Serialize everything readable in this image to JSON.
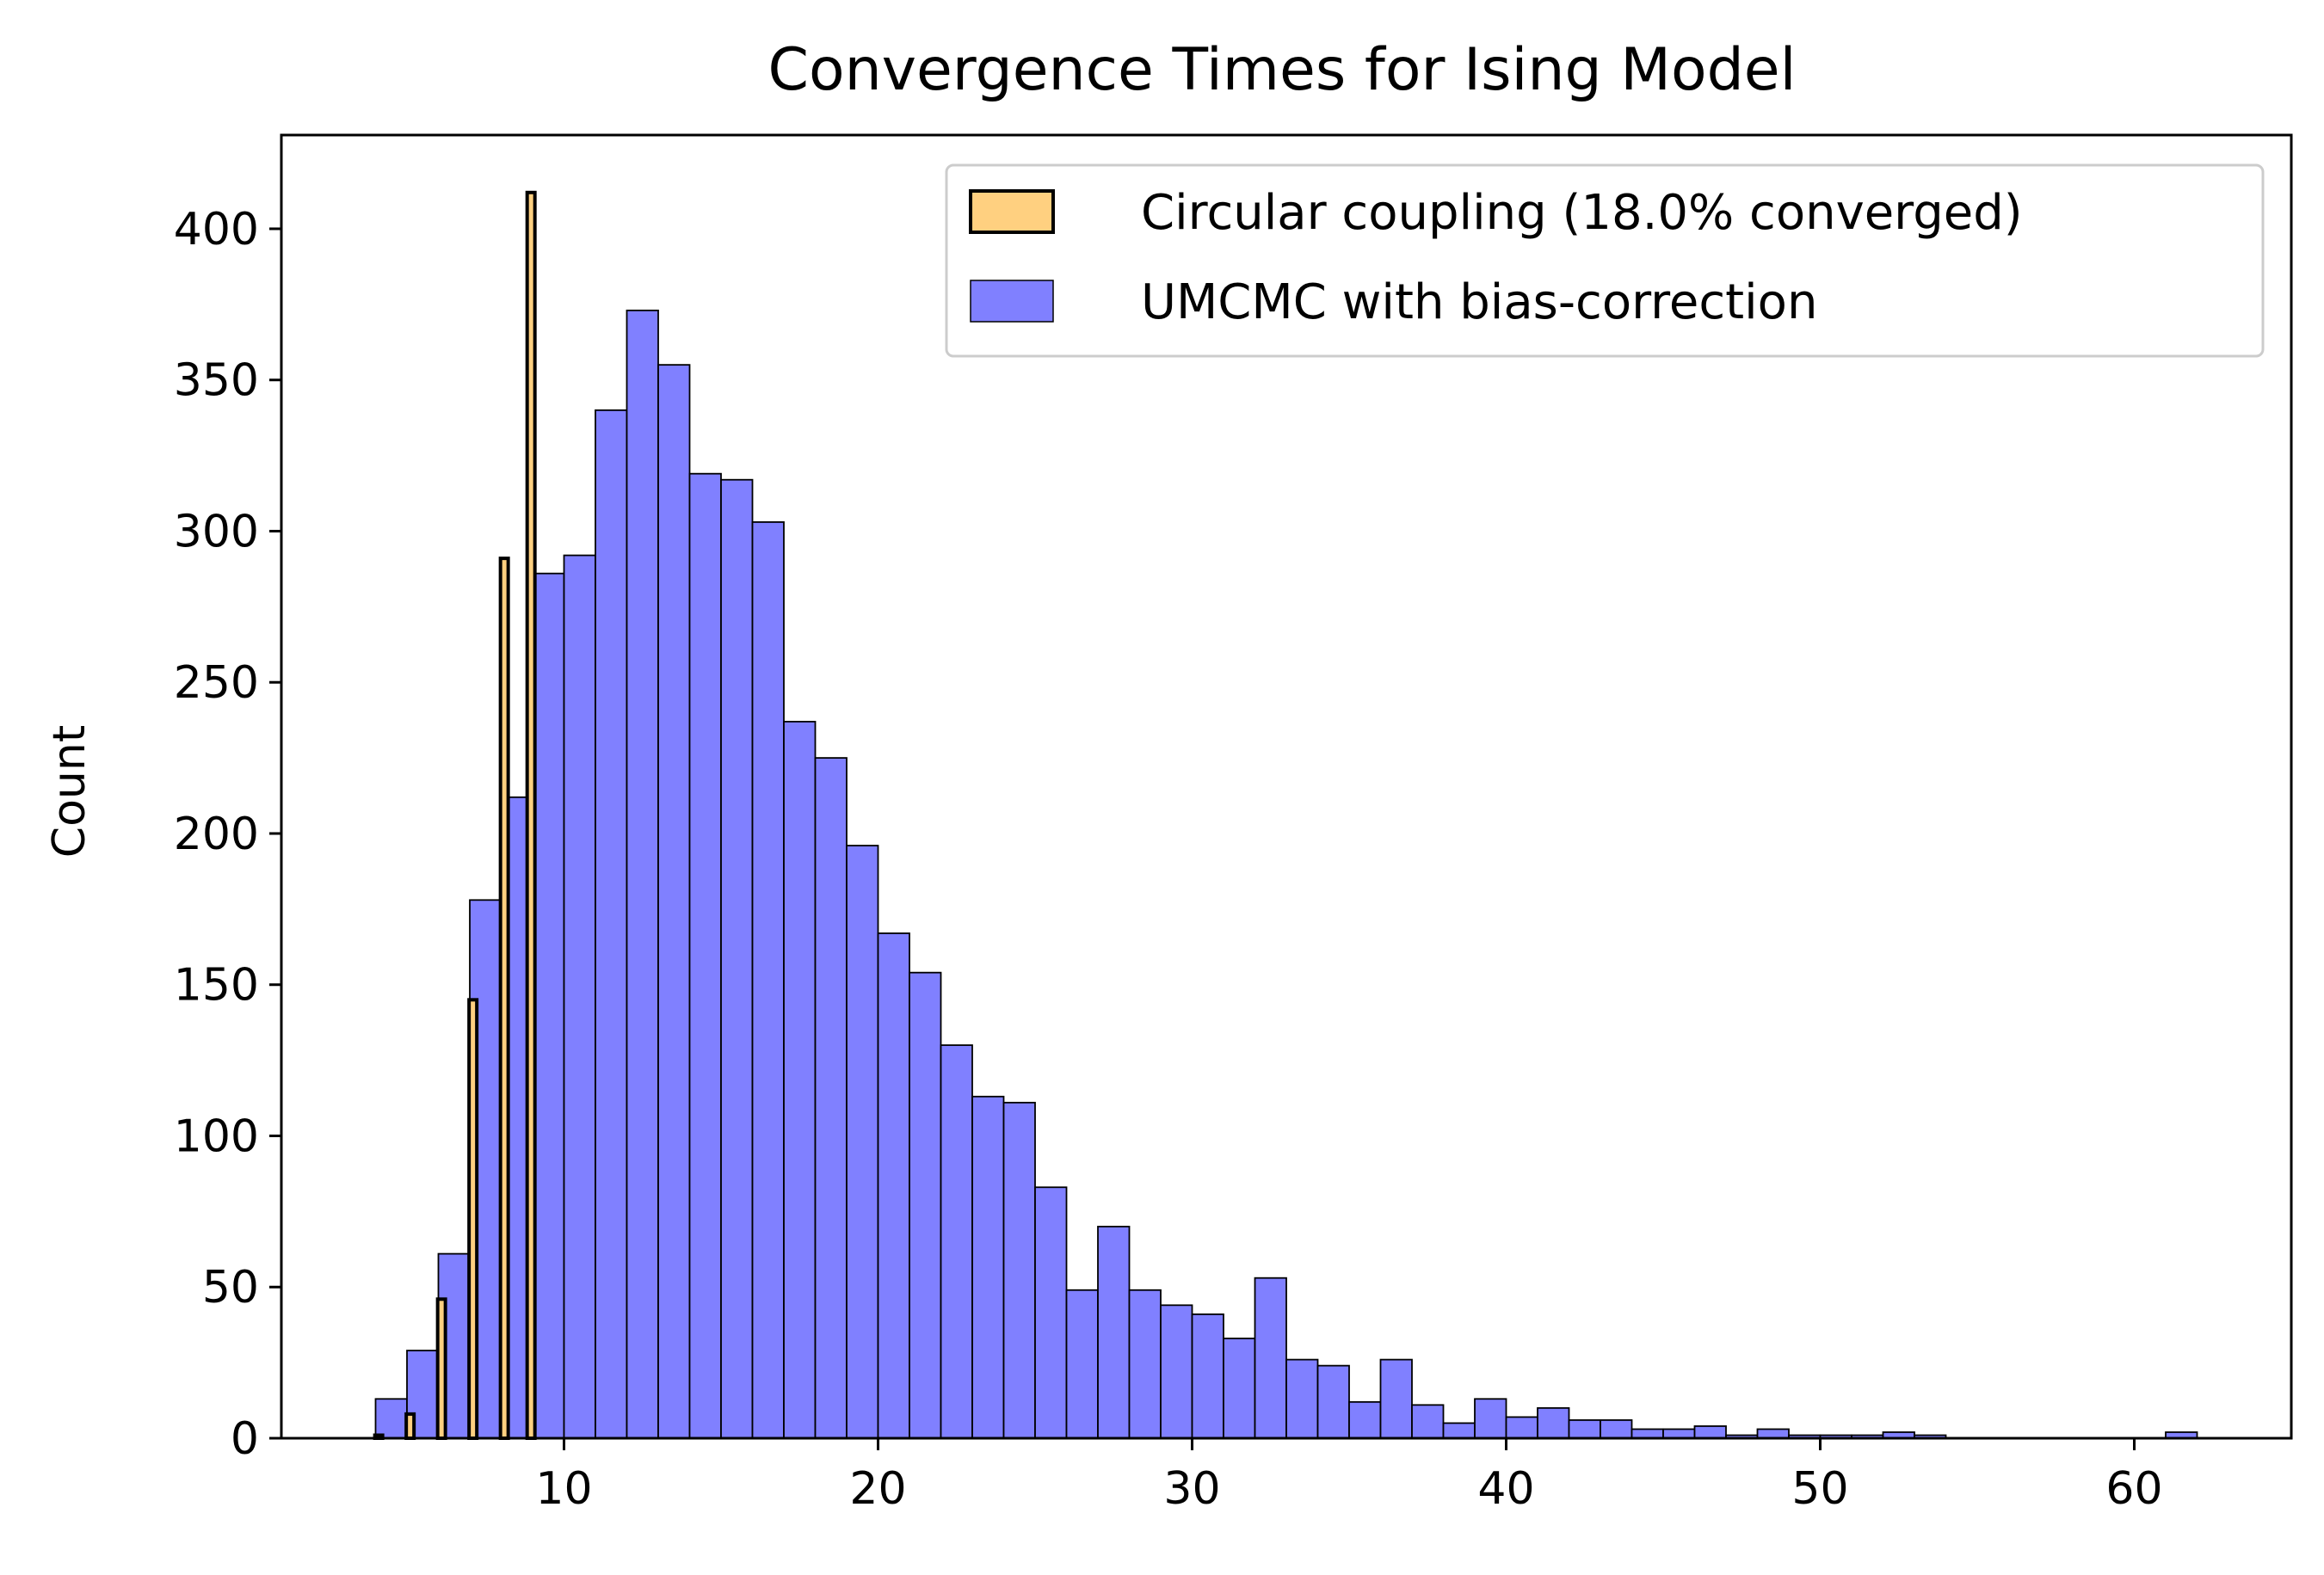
{
  "chart_data": {
    "type": "bar",
    "title": "Convergence Times for Ising Model",
    "xlabel": "",
    "ylabel": "Count",
    "xlim": [
      1,
      65
    ],
    "ylim": [
      0,
      431
    ],
    "x_ticks": [
      10,
      20,
      30,
      40,
      50,
      60
    ],
    "y_ticks": [
      0,
      50,
      100,
      150,
      200,
      250,
      300,
      350,
      400
    ],
    "grid": false,
    "legend_placement": "top-right",
    "legend": [
      "Circular coupling (18.0% converged)",
      "UMCMC with bias-correction"
    ],
    "series": [
      {
        "name": "UMCMC with bias-correction",
        "color": "#8080ff",
        "edgecolor": "#000000",
        "bin_edges": [
          4.0,
          5.0,
          6.0,
          7.0,
          8.0,
          9.0,
          10.0,
          11.0,
          12.0,
          13.0,
          14.0,
          15.0,
          16.0,
          17.0,
          18.0,
          19.0,
          20.0,
          21.0,
          22.0,
          23.0,
          24.0,
          25.0,
          26.0,
          27.0,
          28.0,
          29.0,
          30.0,
          31.0,
          32.0,
          33.0,
          34.0,
          35.0,
          36.0,
          37.0,
          38.0,
          39.0,
          40.0,
          41.0,
          42.0,
          43.0,
          44.0,
          45.0,
          46.0,
          47.0,
          48.0,
          49.0,
          50.0,
          51.0,
          52.0,
          53.0,
          54.0,
          55.0,
          56.0,
          57.0,
          58.0,
          59.0,
          60.0,
          61.0,
          62.0
        ],
        "counts": [
          13,
          29,
          61,
          178,
          212,
          286,
          292,
          340,
          373,
          355,
          319,
          317,
          303,
          237,
          225,
          196,
          167,
          154,
          130,
          113,
          111,
          83,
          49,
          70,
          49,
          44,
          41,
          33,
          53,
          26,
          24,
          12,
          26,
          11,
          5,
          13,
          7,
          10,
          6,
          6,
          3,
          3,
          4,
          1,
          3,
          1,
          1,
          1,
          2,
          1,
          0,
          0,
          0,
          0,
          0,
          0,
          0,
          2
        ]
      },
      {
        "name": "Circular coupling (18.0% converged)",
        "color": "#ffd080",
        "edgecolor": "#000000",
        "x": [
          4.1,
          5.1,
          6.1,
          7.1,
          8.1,
          8.95
        ],
        "counts": [
          1,
          8,
          46,
          145,
          291,
          412
        ]
      }
    ]
  }
}
